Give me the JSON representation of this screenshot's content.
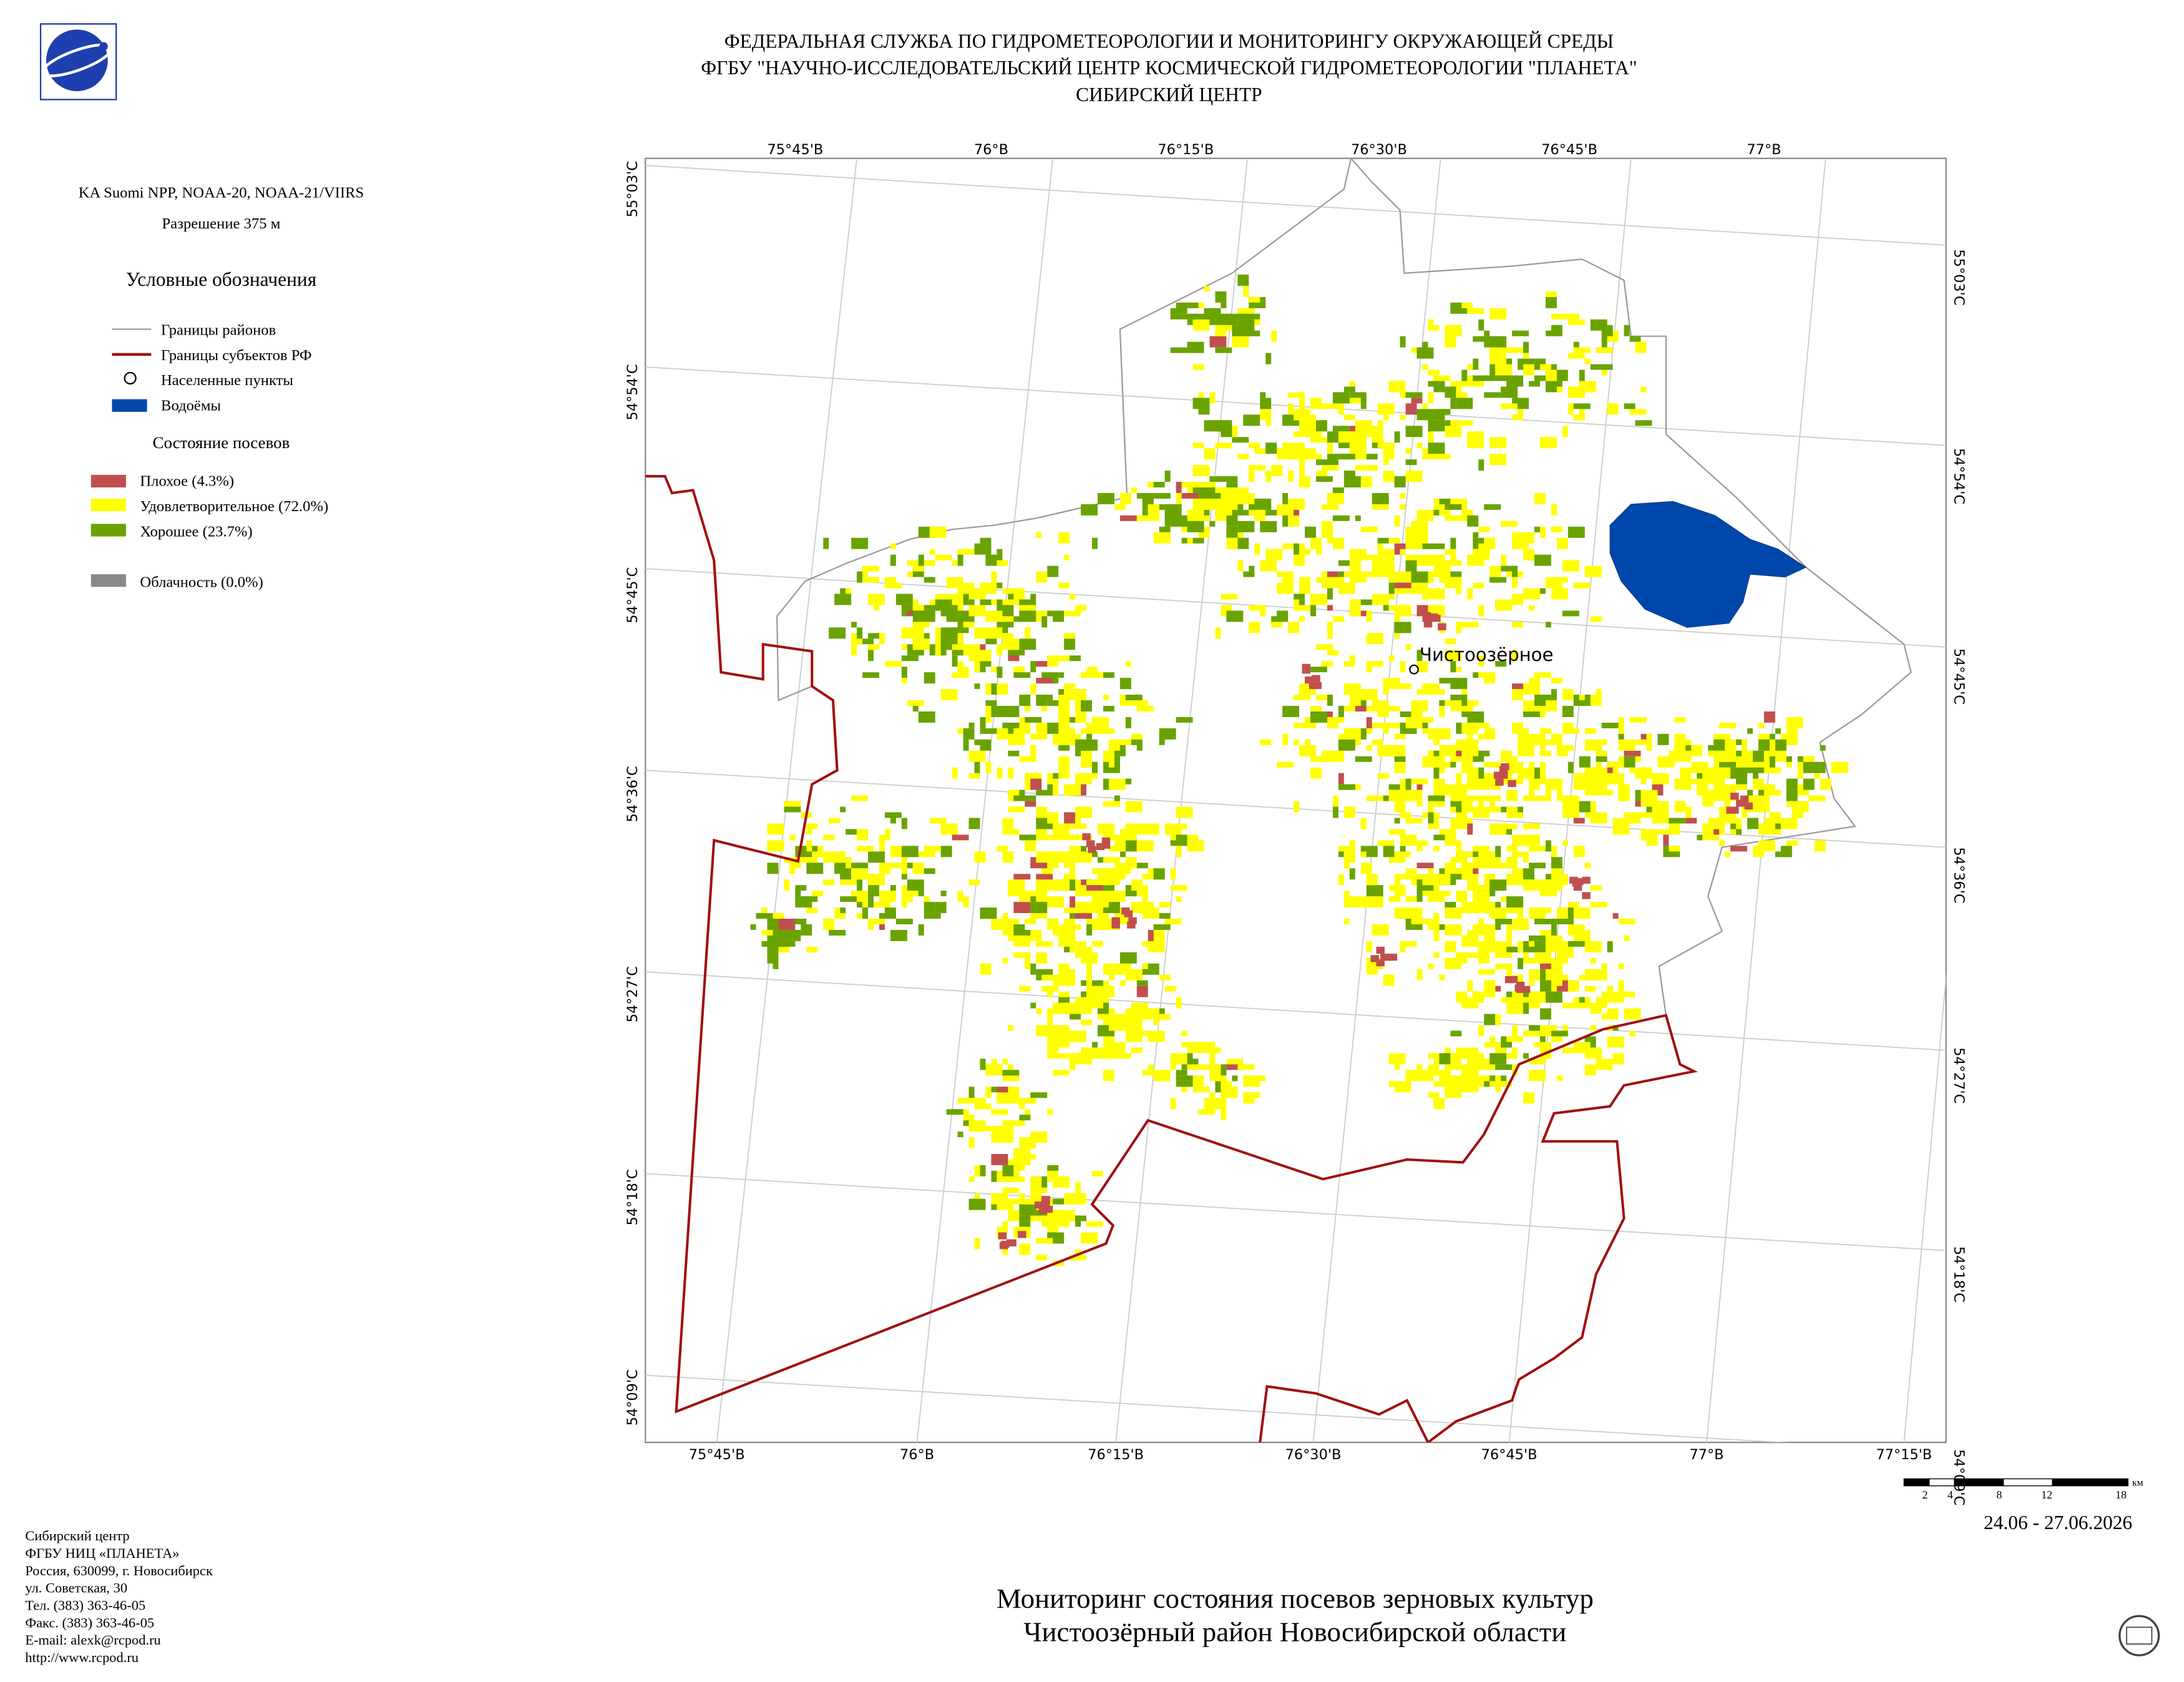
{
  "header": {
    "lines": [
      "ФЕДЕРАЛЬНАЯ СЛУЖБА ПО ГИДРОМЕТЕОРОЛОГИИ И МОНИТОРИНГУ ОКРУЖАЮЩЕЙ СРЕДЫ",
      "ФГБУ \"НАУЧНО-ИССЛЕДОВАТЕЛЬСКИЙ ЦЕНТР КОСМИЧЕСКОЙ ГИДРОМЕТЕОРОЛОГИИ \"ПЛАНЕТА\"",
      "СИБИРСКИЙ ЦЕНТР"
    ]
  },
  "info": {
    "satellites": "KA Suomi NPP, NOAA-20, NOAA-21/VIIRS",
    "resolution": "Разрешение 375 м"
  },
  "legend": {
    "title": "Условные обозначения",
    "items": [
      "Границы районов",
      "Границы субъектов РФ",
      "Населенные пункты",
      "Водоёмы"
    ],
    "crops_title": "Состояние посевов",
    "crops": [
      "Плохое (4.3%)",
      "Удовлетворительное (72.0%)",
      "Хорошее (23.7%)"
    ],
    "cloud": "Облачность (0.0%)"
  },
  "map": {
    "top_labels": [
      "75°45'В",
      "76°В",
      "76°15'В",
      "76°30'В",
      "76°45'В",
      "77°В"
    ],
    "bottom_labels": [
      "75°45'В",
      "76°В",
      "76°15'В",
      "76°30'В",
      "76°45'В",
      "77°В",
      "77°15'В"
    ],
    "left_labels": [
      "55°03'С",
      "54°54'С",
      "54°45'С",
      "54°36'С",
      "54°27'С",
      "54°18'С",
      "54°09'С"
    ],
    "right_labels": [
      "55°03'С",
      "54°54'С",
      "54°45'С",
      "54°36'С",
      "54°27'С",
      "54°18'С",
      "54°09'С"
    ],
    "settlement": "Чистоозёрное",
    "scale": [
      "2",
      "4",
      "8",
      "12",
      "18"
    ],
    "scale_unit": "км",
    "date": "24.06 - 27.06.2026"
  },
  "footer": {
    "contacts": [
      "Сибирский центр",
      "ФГБУ НИЦ «ПЛАНЕТА»",
      "Россия, 630099, г. Новосибирск",
      "ул. Советская, 30",
      "Тел. (383) 363-46-05",
      "Факс. (383) 363-46-05",
      "E-mail: alexk@rcpod.ru",
      "http://www.rcpod.ru"
    ],
    "title": [
      "Мониторинг состояния посевов зерновых культур",
      "Чистоозёрный район Новосибирской области"
    ]
  }
}
